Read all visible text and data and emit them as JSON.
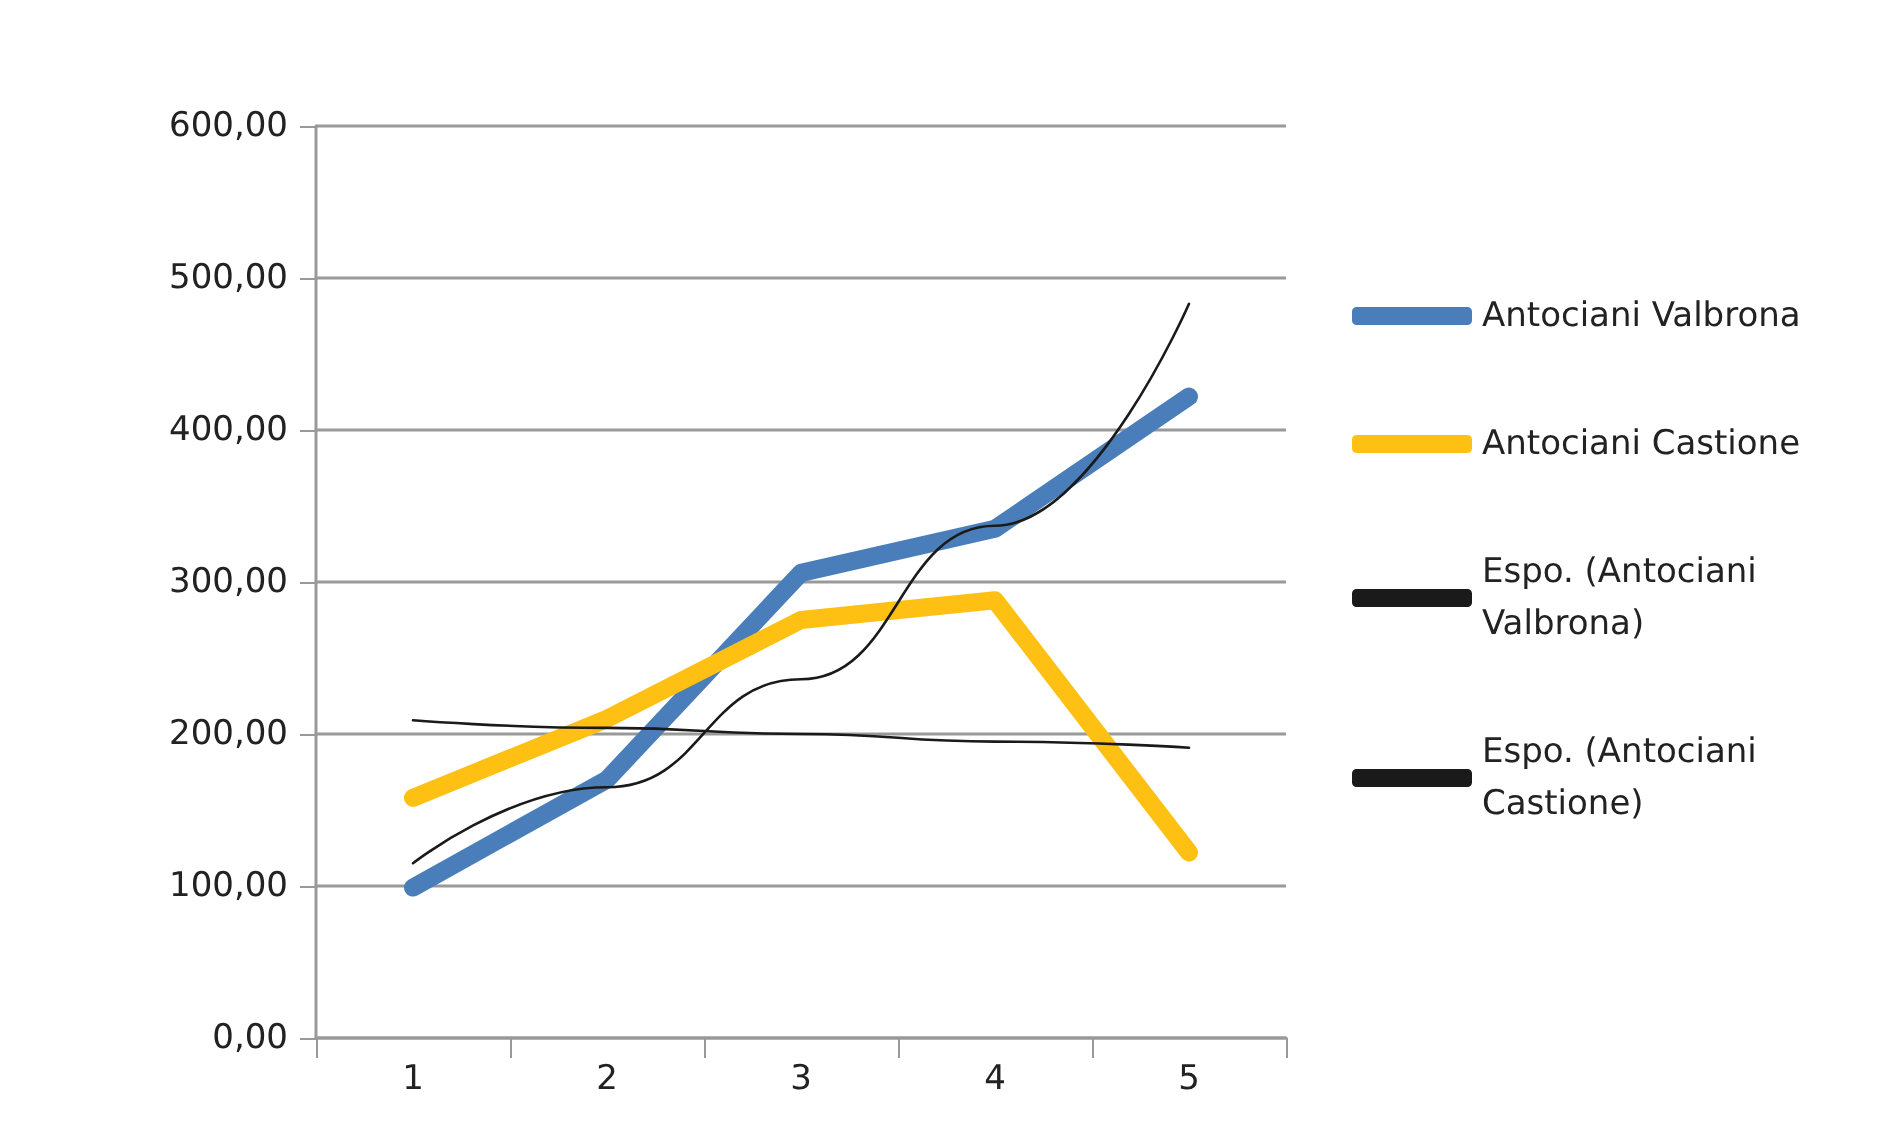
{
  "chart_data": {
    "type": "line",
    "categories": [
      "1",
      "2",
      "3",
      "4",
      "5"
    ],
    "series": [
      {
        "name": "Antociani Valbrona",
        "color": "#4a7ebb",
        "values": [
          99,
          170,
          306,
          335,
          422
        ]
      },
      {
        "name": "Antociani Castione",
        "color": "#fdc013",
        "values": [
          158,
          210,
          275,
          288,
          122
        ]
      },
      {
        "name": "Espo. (Antociani Valbrona)",
        "color": "#1a1a1a",
        "values": [
          115,
          165,
          236,
          337,
          483
        ]
      },
      {
        "name": "Espo. (Antociani Castione)",
        "color": "#1a1a1a",
        "values": [
          209,
          204,
          200,
          195,
          191
        ]
      }
    ],
    "ylim": [
      0,
      600
    ],
    "yticks": [
      {
        "value": 0,
        "label": "0,00"
      },
      {
        "value": 100,
        "label": "100,00"
      },
      {
        "value": 200,
        "label": "200,00"
      },
      {
        "value": 300,
        "label": "300,00"
      },
      {
        "value": 400,
        "label": "400,00"
      },
      {
        "value": 500,
        "label": "500,00"
      },
      {
        "value": 600,
        "label": "600,00"
      }
    ],
    "grid": "y",
    "legend": "right",
    "marker": "none"
  }
}
